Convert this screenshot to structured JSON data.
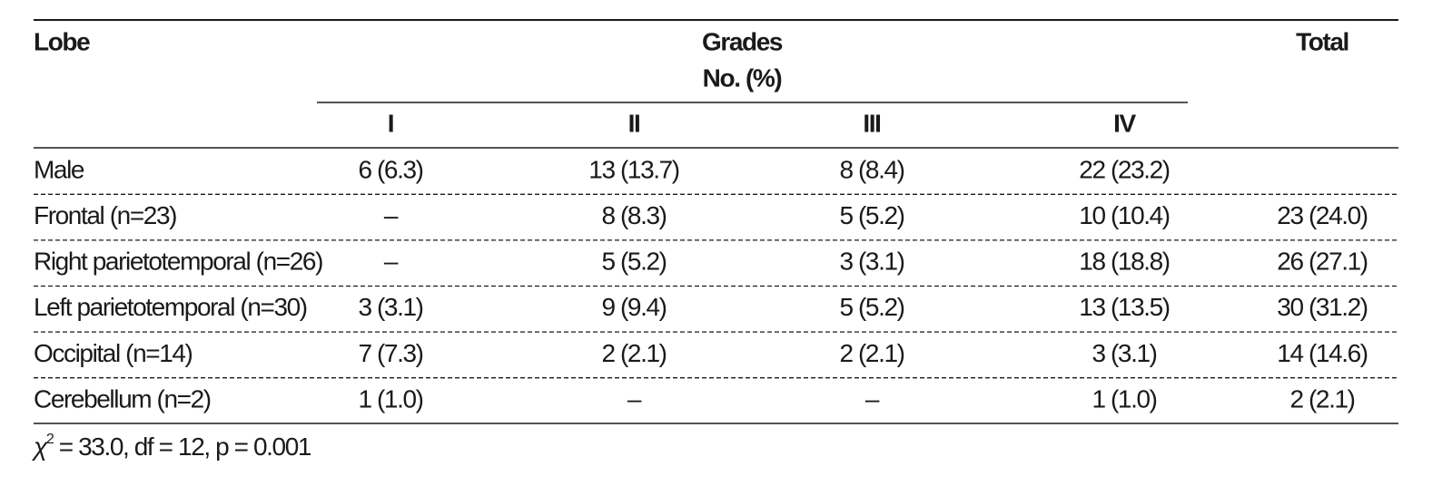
{
  "table": {
    "header": {
      "lobe": "Lobe",
      "grades": "Grades",
      "unit": "No. (%)",
      "total": "Total",
      "grade_columns": [
        "I",
        "II",
        "III",
        "IV"
      ]
    },
    "rows": [
      [
        "Male",
        "6 (6.3)",
        "13 (13.7)",
        "8 (8.4)",
        "22 (23.2)",
        null
      ],
      [
        "Frontal (n=23)",
        "–",
        "8 (8.3)",
        "5 (5.2)",
        "10 (10.4)",
        "23 (24.0)"
      ],
      [
        "Right parietotemporal (n=26)",
        "–",
        "5 (5.2)",
        "3 (3.1)",
        "18 (18.8)",
        "26 (27.1)"
      ],
      [
        "Left parietotemporal (n=30)",
        "3 (3.1)",
        "9 (9.4)",
        "5 (5.2)",
        "13 (13.5)",
        "30 (31.2)"
      ],
      [
        "Occipital (n=14)",
        "7 (7.3)",
        "2 (2.1)",
        "2 (2.1)",
        "3 (3.1)",
        "14 (14.6)"
      ],
      [
        "Cerebellum (n=2)",
        "1 (1.0)",
        "–",
        "–",
        "1 (1.0)",
        "2 (2.1)"
      ]
    ]
  },
  "footnote": {
    "symbol": "χ",
    "superscript": "2",
    "text": " = 33.0, df = 12, p = 0.001"
  }
}
